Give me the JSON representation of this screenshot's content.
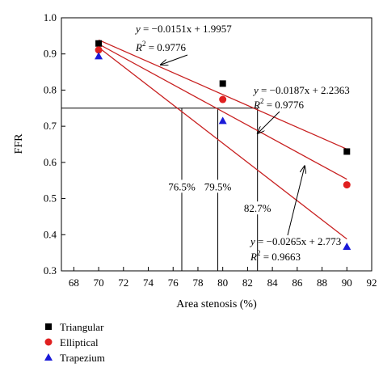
{
  "chart_data": {
    "type": "scatter",
    "xlabel": "Area stenosis (%)",
    "ylabel": "FFR",
    "xlim": [
      67,
      92
    ],
    "ylim": [
      0.3,
      1.0
    ],
    "x_ticks": [
      "68",
      "70",
      "72",
      "74",
      "76",
      "78",
      "80",
      "82",
      "84",
      "86",
      "88",
      "90",
      "92"
    ],
    "y_ticks": [
      "0.3",
      "0.4",
      "0.5",
      "0.6",
      "0.7",
      "0.8",
      "0.9",
      "1.0"
    ],
    "grid": false,
    "legend_position": "bottom-left",
    "series": [
      {
        "name": "Triangular",
        "marker": "square",
        "color": "#000000",
        "x": [
          70,
          80,
          90
        ],
        "y": [
          0.929,
          0.818,
          0.63
        ]
      },
      {
        "name": "Elliptical",
        "marker": "circle",
        "color": "#e02020",
        "x": [
          70,
          80,
          90
        ],
        "y": [
          0.911,
          0.774,
          0.538
        ]
      },
      {
        "name": "Trapezium",
        "marker": "triangle",
        "color": "#1a1ad8",
        "x": [
          70,
          80,
          90
        ],
        "y": [
          0.894,
          0.715,
          0.367
        ]
      }
    ],
    "fit_lines": [
      {
        "slope": -0.0151,
        "intercept": 1.9957,
        "x_range": [
          70,
          90
        ],
        "color": "#c82020"
      },
      {
        "slope": -0.0187,
        "intercept": 2.2363,
        "x_range": [
          70,
          90
        ],
        "color": "#c82020"
      },
      {
        "slope": -0.0265,
        "intercept": 2.773,
        "x_range": [
          70,
          90
        ],
        "color": "#c82020"
      }
    ],
    "threshold": {
      "y": 0.75,
      "x_values": [
        76.7,
        79.6,
        82.8
      ],
      "labels": [
        "76.5%",
        "79.5%",
        "82.7%"
      ]
    },
    "annotations": [
      {
        "eq_y": "y",
        "eq_rest": " = −0.0151x + 1.9957",
        "r2_text": " = 0.9776",
        "target": [
          75.0,
          0.87
        ]
      },
      {
        "eq_y": "y",
        "eq_rest": " = −0.0187x + 2.2363",
        "r2_text": " = 0.9776",
        "target": [
          82.8,
          0.68
        ]
      },
      {
        "eq_y": "y",
        "eq_rest": " = −0.0265x + 2.773",
        "r2_text": " = 0.9663",
        "target": [
          86.6,
          0.59
        ]
      }
    ],
    "r2_symbol": "R",
    "r2_sup": "2"
  }
}
